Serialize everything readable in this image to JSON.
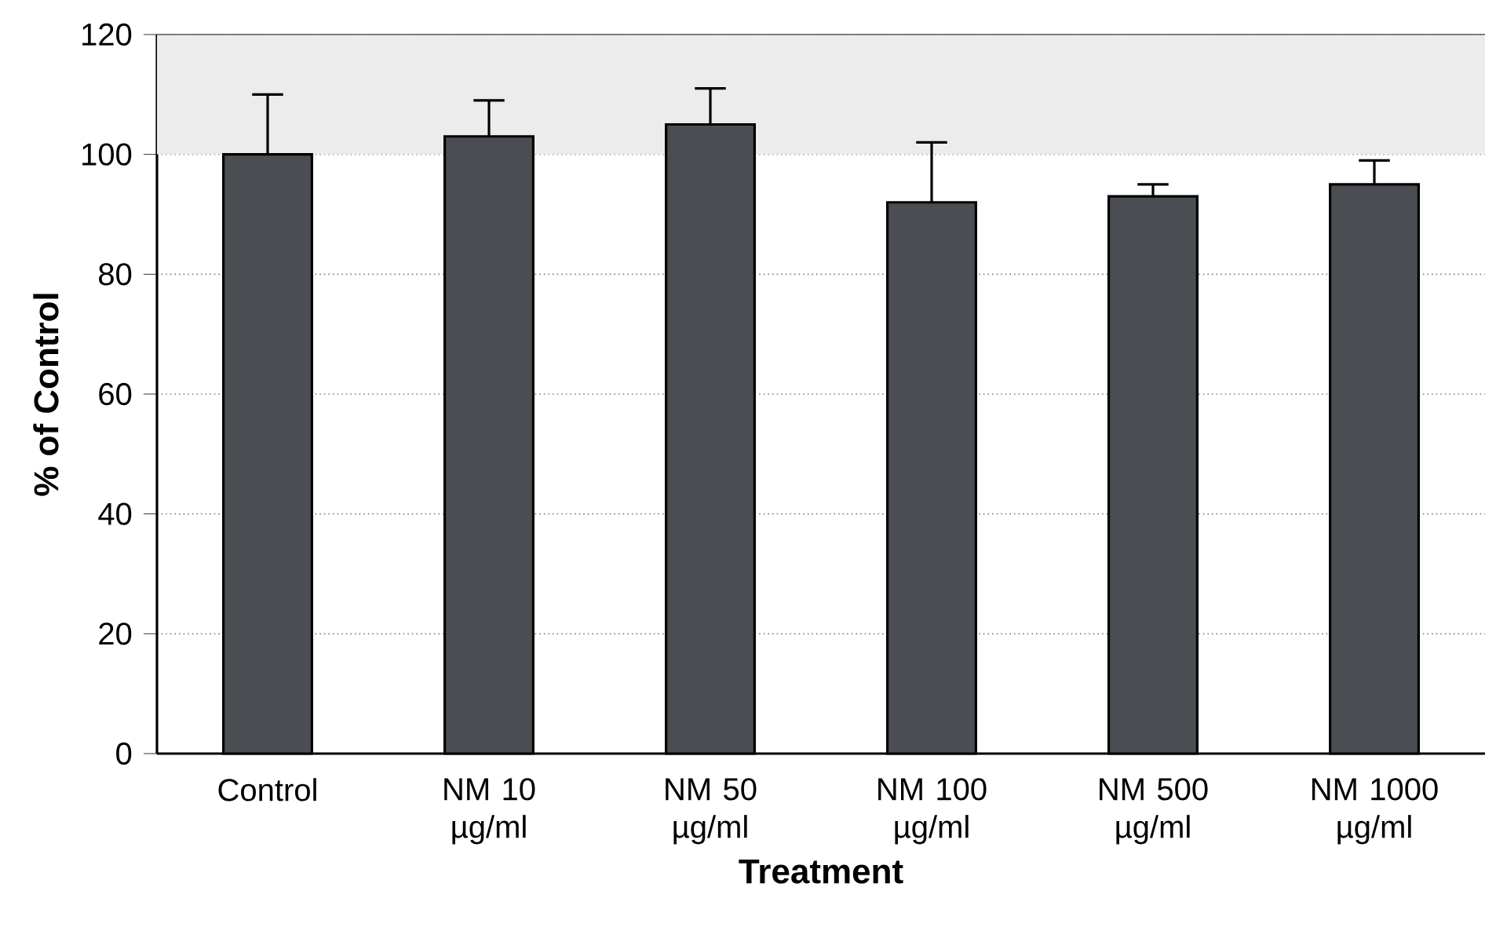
{
  "chart_data": {
    "type": "bar",
    "xlabel": "Treatment",
    "ylabel": "% of Control",
    "categories": [
      "Control",
      "NM 10 µg/ml",
      "NM 50 µg/ml",
      "NM 100 µg/ml",
      "NM 500 µg/ml",
      "NM 1000 µg/ml"
    ],
    "values": [
      100,
      103,
      105,
      92,
      93,
      95
    ],
    "errors": [
      [
        100,
        110
      ],
      [
        103,
        109
      ],
      [
        105,
        111
      ],
      [
        92,
        102
      ],
      [
        93,
        95
      ],
      [
        95,
        99
      ]
    ],
    "color": "#4a4d52",
    "ylim": [
      0,
      120
    ],
    "yticks": [
      0,
      20,
      40,
      60,
      80,
      100,
      120
    ],
    "grid": "y",
    "bands": [
      {
        "axis": "y",
        "from": 100,
        "to": 120,
        "color": "#ececec"
      }
    ]
  }
}
